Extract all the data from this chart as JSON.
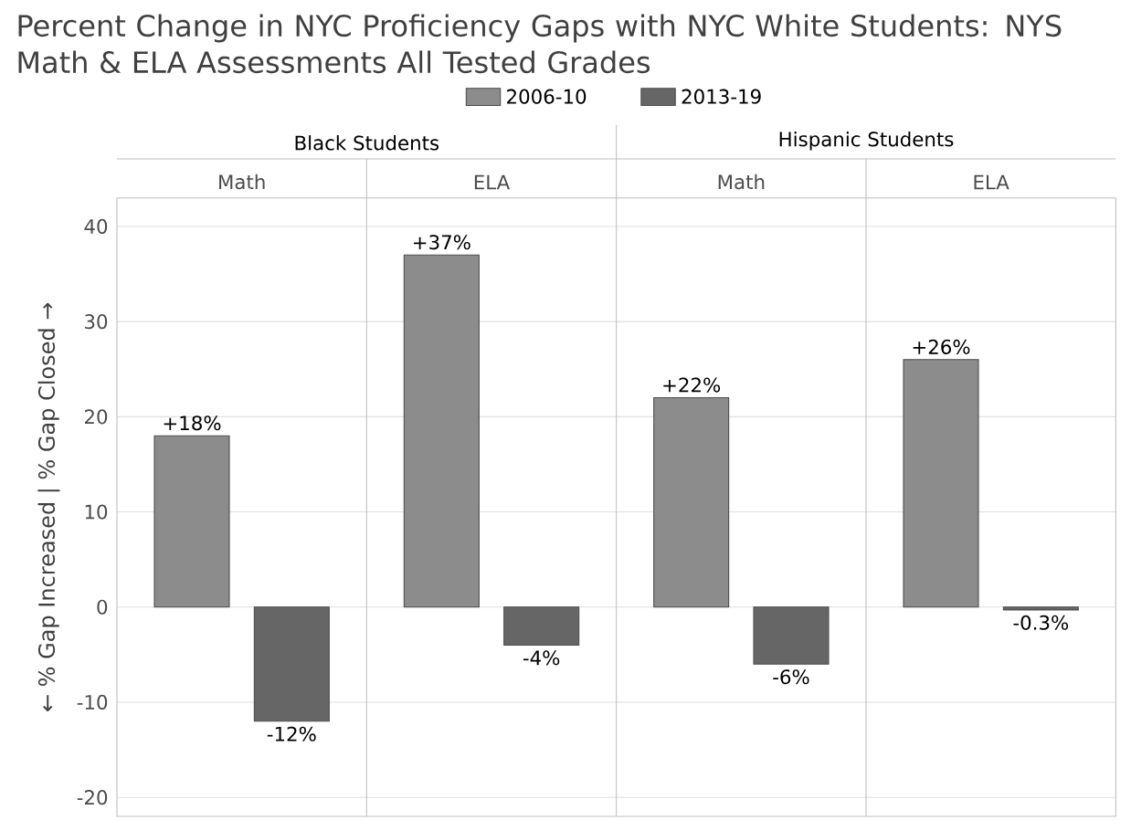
{
  "chart_data": {
    "type": "bar",
    "title": "Percent Change in NYC Proficiency Gaps with NYC White Students: NYS Math & ELA Assessments All Tested Grades",
    "ylabel": "← % Gap Increased | % Gap Closed →",
    "categories": [
      "Math",
      "ELA",
      "Math",
      "ELA"
    ],
    "annotations": [
      "Black Students",
      "Hispanic Students"
    ],
    "series": [
      {
        "name": "2006-10",
        "color": "#8c8c8c",
        "values": [
          18,
          37,
          22,
          26
        ],
        "value_labels": [
          "+18%",
          "+37%",
          "+22%",
          "+26%"
        ]
      },
      {
        "name": "2013-19",
        "color": "#666666",
        "values": [
          -12,
          -4,
          -6,
          -0.3
        ],
        "value_labels": [
          "-12%",
          "-4%",
          "-6%",
          "-0.3%"
        ]
      }
    ],
    "ylim": [
      -22,
      43
    ],
    "yticks": [
      -20,
      -10,
      0,
      10,
      20,
      30,
      40
    ],
    "grid": "y",
    "legend": "top"
  }
}
